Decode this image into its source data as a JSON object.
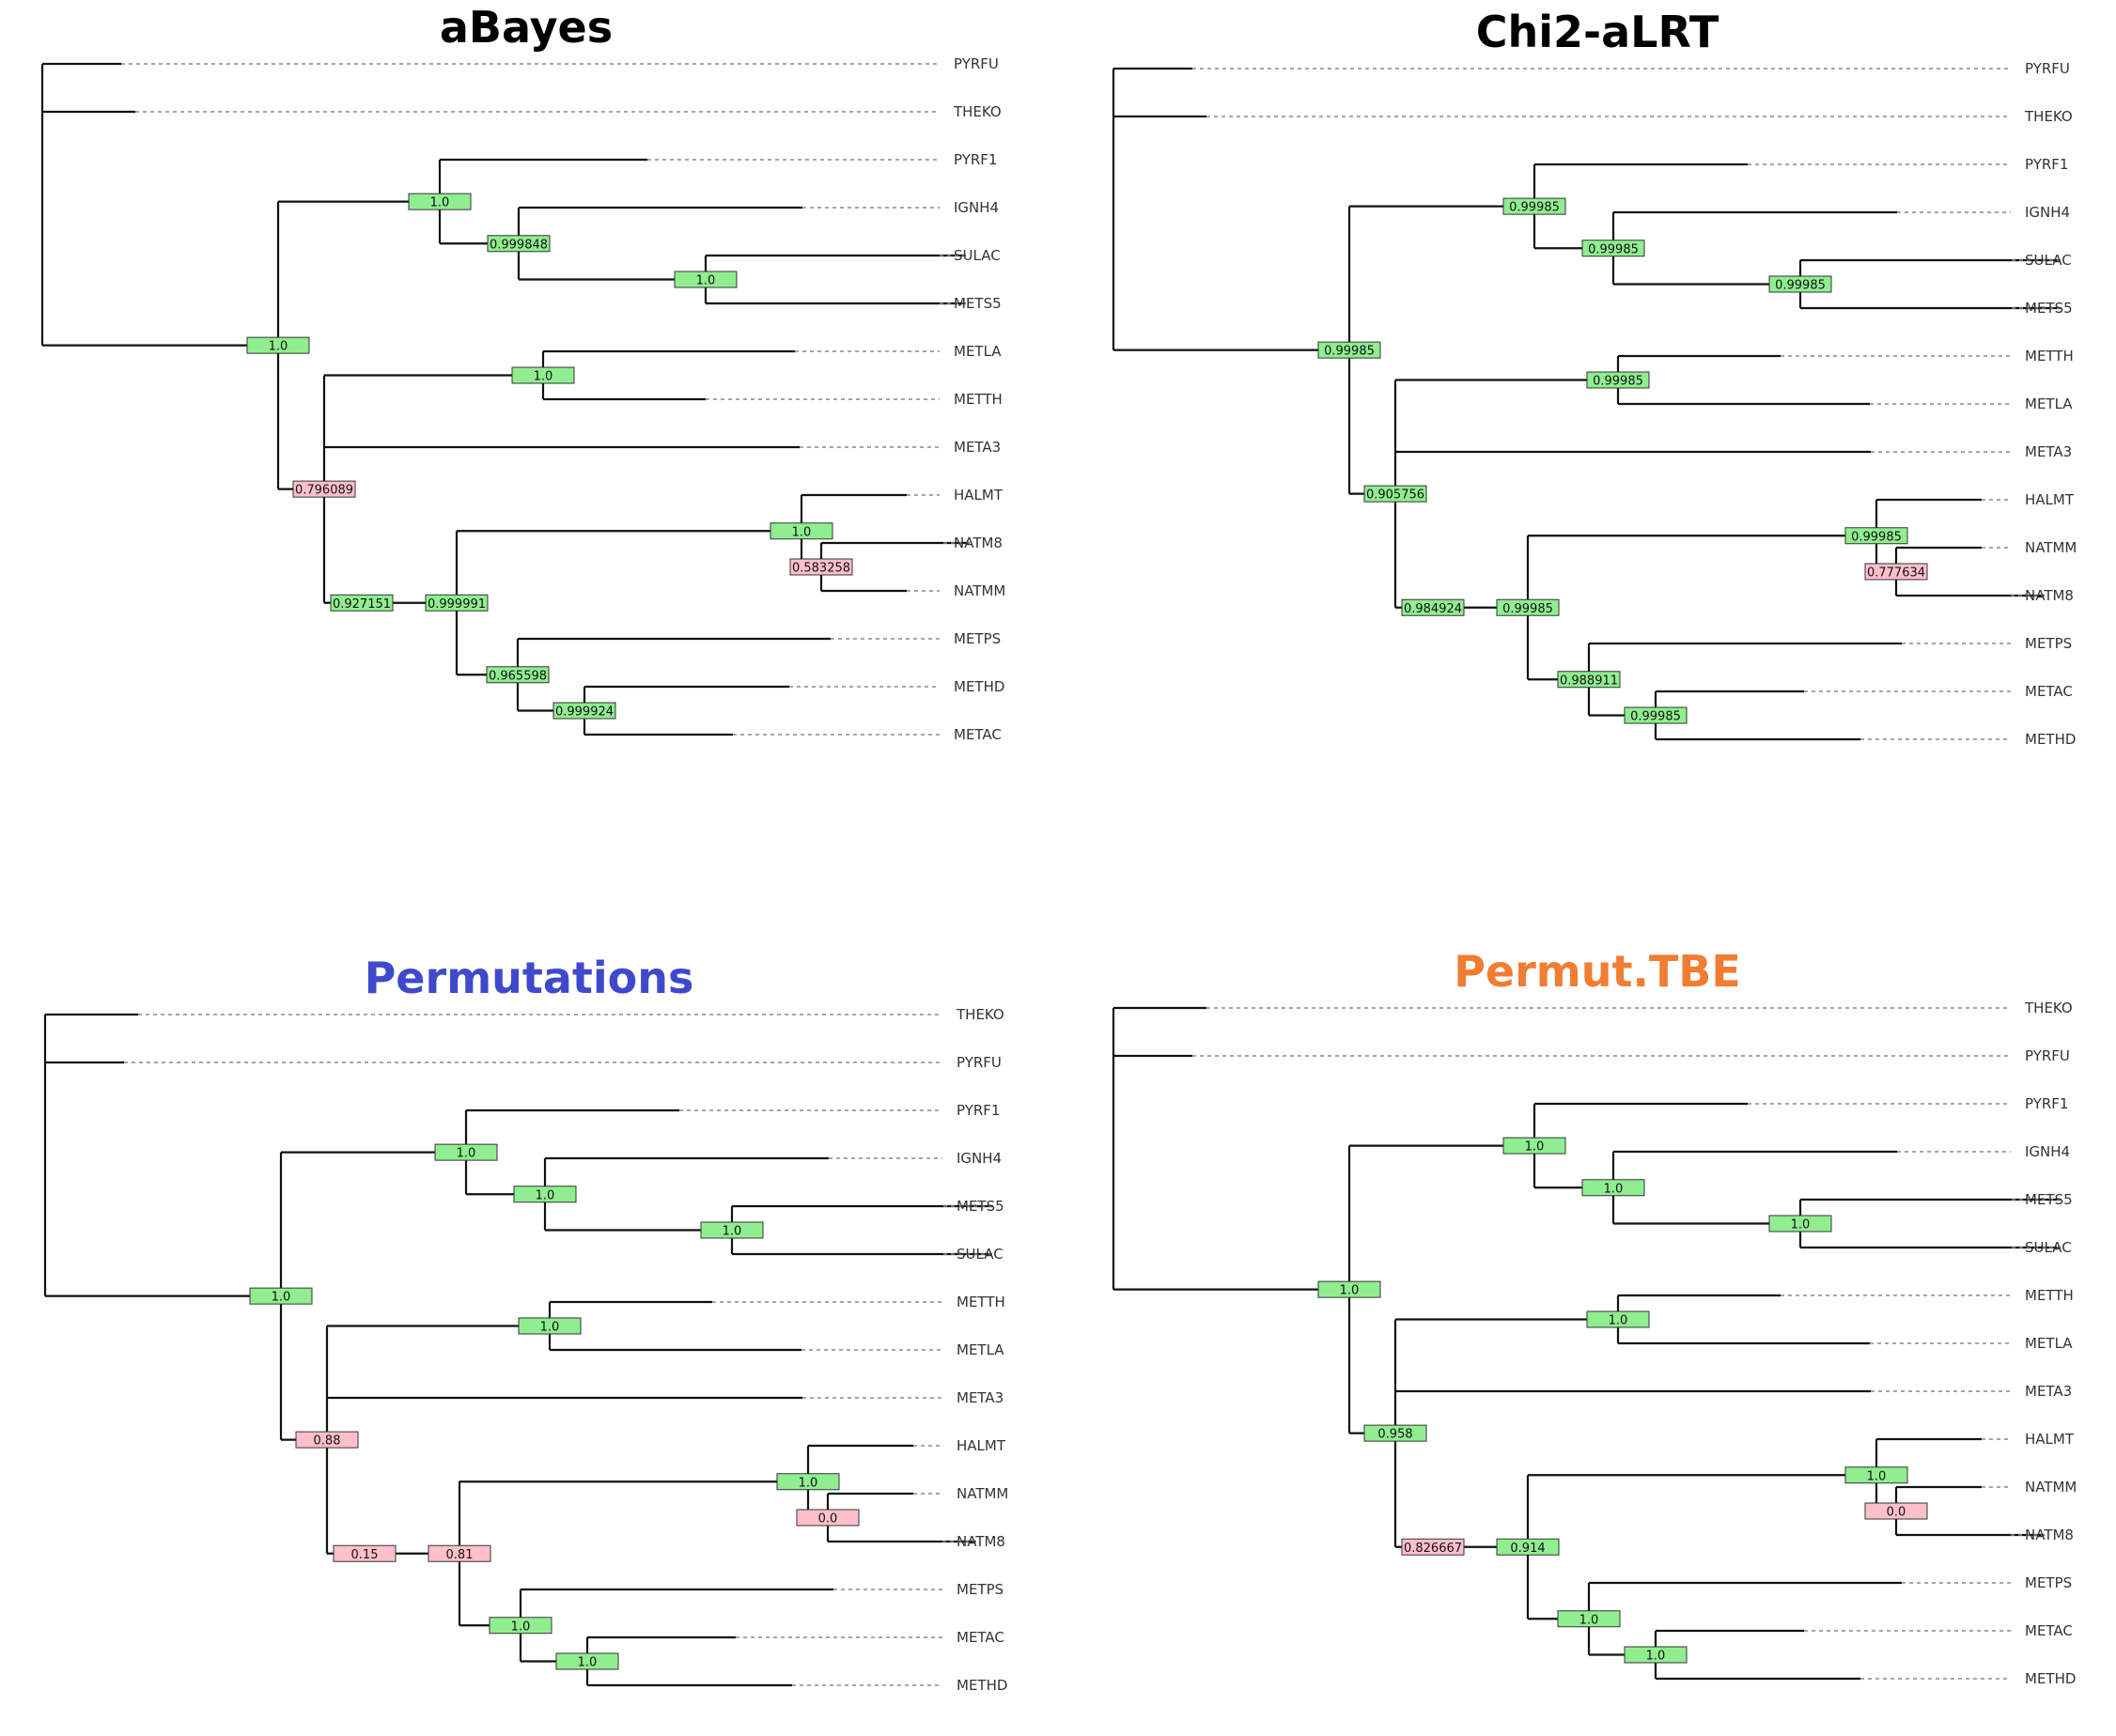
{
  "colors": {
    "high": "#90ee90",
    "low": "#ffc0cb",
    "box_stroke": "#333333"
  },
  "panels": [
    {
      "title": "aBayes",
      "title_color": "#000000",
      "tree": [
        "N",
        [
          "L",
          "PYRFU",
          0.084
        ],
        [
          "L",
          "THEKO",
          0.099
        ],
        [
          "N",
          0.251,
          "1.0",
          [
            "N",
            0.172,
            "1.0",
            [
              "L",
              "PYRF1",
              0.221
            ],
            [
              "N",
              0.084,
              "0.999848",
              [
                "L",
                "IGNH4",
                0.302
              ],
              [
                "N",
                0.199,
                "1.0",
                [
                  "L",
                  "SULAC",
                  0.277
                ],
                [
                  "L",
                  "METS5",
                  0.277
                ]
              ]
            ]
          ],
          [
            "N",
            0.049,
            "0.796089",
            [
              "N",
              0.233,
              "1.0",
              [
                "L",
                "METLA",
                0.268
              ],
              [
                "L",
                "METTH",
                0.173
              ]
            ],
            [
              "L",
              "META3",
              0.506
            ],
            [
              "N",
              0.04,
              "0.927151",
              [
                "N",
                0.101,
                "0.999991",
                [
                  "N",
                  0.367,
                  "1.0",
                  [
                    "L",
                    "HALMT",
                    0.112
                  ],
                  [
                    "N",
                    0.021,
                    "0.583258",
                    [
                      "L",
                      "NATM8",
                      0.158
                    ],
                    [
                      "L",
                      "NATMM",
                      0.091
                    ]
                  ]
                ],
                [
                  "N",
                  0.065,
                  "0.965598",
                  [
                    "L",
                    "METPS",
                    0.333
                  ],
                  [
                    "N",
                    0.071,
                    "0.999924",
                    [
                      "L",
                      "METHD",
                      0.218
                    ],
                    [
                      "L",
                      "METAC",
                      0.158
                    ]
                  ]
                ]
              ]
            ]
          ]
        ]
      ]
    },
    {
      "title": "Chi2-aLRT",
      "title_color": "#000000",
      "tree": [
        "N",
        [
          "L",
          "PYRFU",
          0.084
        ],
        [
          "L",
          "THEKO",
          0.099
        ],
        [
          "N",
          0.251,
          "0.99985",
          [
            "N",
            0.197,
            "0.99985",
            [
              "L",
              "PYRF1",
              0.227
            ],
            [
              "N",
              0.084,
              "0.99985",
              [
                "L",
                "IGNH4",
                0.302
              ],
              [
                "N",
                0.199,
                "0.99985",
                [
                  "L",
                  "SULAC",
                  0.277
                ],
                [
                  "L",
                  "METS5",
                  0.277
                ]
              ]
            ]
          ],
          [
            "N",
            0.049,
            "0.905756",
            [
              "N",
              0.237,
              "0.99985",
              [
                "L",
                "METTH",
                0.173
              ],
              [
                "L",
                "METLA",
                0.268
              ]
            ],
            [
              "L",
              "META3",
              0.506
            ],
            [
              "N",
              0.04,
              "0.984924",
              [
                "N",
                0.101,
                "0.99985",
                [
                  "N",
                  0.371,
                  "0.99985",
                  [
                    "L",
                    "HALMT",
                    0.112
                  ],
                  [
                    "N",
                    0.021,
                    "0.777634",
                    [
                      "L",
                      "NATMM",
                      0.091
                    ],
                    [
                      "L",
                      "NATM8",
                      0.158
                    ]
                  ]
                ],
                [
                  "N",
                  0.065,
                  "0.988911",
                  [
                    "L",
                    "METPS",
                    0.333
                  ],
                  [
                    "N",
                    0.071,
                    "0.99985",
                    [
                      "L",
                      "METAC",
                      0.158
                    ],
                    [
                      "L",
                      "METHD",
                      0.218
                    ]
                  ]
                ]
              ]
            ]
          ]
        ]
      ]
    },
    {
      "title": "Permutations",
      "title_color": "#3e4acb",
      "tree": [
        "N",
        [
          "L",
          "THEKO",
          0.099
        ],
        [
          "L",
          "PYRFU",
          0.084
        ],
        [
          "N",
          0.251,
          "1.0",
          [
            "N",
            0.197,
            "1.0",
            [
              "L",
              "PYRF1",
              0.227
            ],
            [
              "N",
              0.084,
              "1.0",
              [
                "L",
                "IGNH4",
                0.302
              ],
              [
                "N",
                0.199,
                "1.0",
                [
                  "L",
                  "METS5",
                  0.277
                ],
                [
                  "L",
                  "SULAC",
                  0.277
                ]
              ]
            ]
          ],
          [
            "N",
            0.049,
            "0.88",
            [
              "N",
              0.237,
              "1.0",
              [
                "L",
                "METTH",
                0.173
              ],
              [
                "L",
                "METLA",
                0.268
              ]
            ],
            [
              "L",
              "META3",
              0.506
            ],
            [
              "N",
              0.04,
              "0.15",
              [
                "N",
                0.101,
                "0.81",
                [
                  "N",
                  0.371,
                  "1.0",
                  [
                    "L",
                    "HALMT",
                    0.112
                  ],
                  [
                    "N",
                    0.021,
                    "0.0",
                    [
                      "L",
                      "NATMM",
                      0.091
                    ],
                    [
                      "L",
                      "NATM8",
                      0.158
                    ]
                  ]
                ],
                [
                  "N",
                  0.065,
                  "1.0",
                  [
                    "L",
                    "METPS",
                    0.333
                  ],
                  [
                    "N",
                    0.071,
                    "1.0",
                    [
                      "L",
                      "METAC",
                      0.158
                    ],
                    [
                      "L",
                      "METHD",
                      0.218
                    ]
                  ]
                ]
              ]
            ]
          ]
        ]
      ]
    },
    {
      "title": "Permut.TBE",
      "title_color": "#f07d32",
      "tree": [
        "N",
        [
          "L",
          "THEKO",
          0.099
        ],
        [
          "L",
          "PYRFU",
          0.084
        ],
        [
          "N",
          0.251,
          "1.0",
          [
            "N",
            0.197,
            "1.0",
            [
              "L",
              "PYRF1",
              0.227
            ],
            [
              "N",
              0.084,
              "1.0",
              [
                "L",
                "IGNH4",
                0.302
              ],
              [
                "N",
                0.199,
                "1.0",
                [
                  "L",
                  "METS5",
                  0.277
                ],
                [
                  "L",
                  "SULAC",
                  0.277
                ]
              ]
            ]
          ],
          [
            "N",
            0.049,
            "0.958",
            [
              "N",
              0.237,
              "1.0",
              [
                "L",
                "METTH",
                0.173
              ],
              [
                "L",
                "METLA",
                0.268
              ]
            ],
            [
              "L",
              "META3",
              0.506
            ],
            [
              "N",
              0.04,
              "0.826667",
              [
                "N",
                0.101,
                "0.914",
                [
                  "N",
                  0.371,
                  "1.0",
                  [
                    "L",
                    "HALMT",
                    0.112
                  ],
                  [
                    "N",
                    0.021,
                    "0.0",
                    [
                      "L",
                      "NATMM",
                      0.091
                    ],
                    [
                      "L",
                      "NATM8",
                      0.158
                    ]
                  ]
                ],
                [
                  "N",
                  0.065,
                  "1.0",
                  [
                    "L",
                    "METPS",
                    0.333
                  ],
                  [
                    "N",
                    0.071,
                    "1.0",
                    [
                      "L",
                      "METAC",
                      0.158
                    ],
                    [
                      "L",
                      "METHD",
                      0.218
                    ]
                  ]
                ]
              ]
            ]
          ]
        ]
      ]
    }
  ]
}
